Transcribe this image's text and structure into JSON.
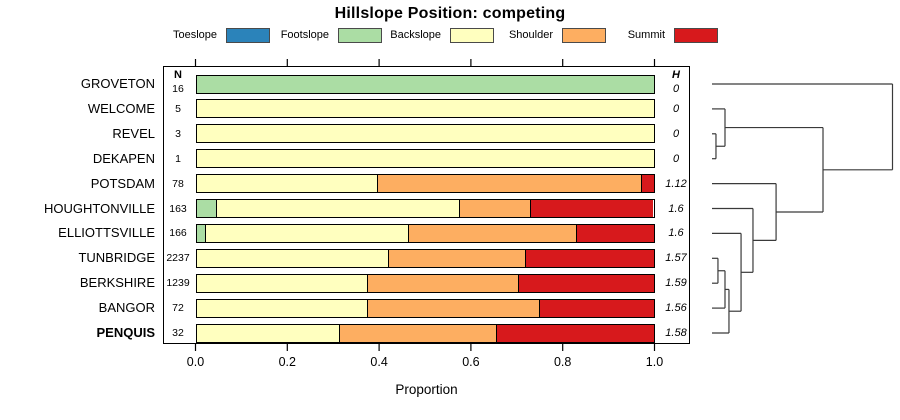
{
  "title": "Hillslope Position: competing",
  "legend": {
    "items": [
      {
        "label": "Toeslope",
        "color": "#2B83BA"
      },
      {
        "label": "Footslope",
        "color": "#ABDDA4"
      },
      {
        "label": "Backslope",
        "color": "#FFFFBF"
      },
      {
        "label": "Shoulder",
        "color": "#FDAE61"
      },
      {
        "label": "Summit",
        "color": "#D7191C"
      }
    ]
  },
  "columns": {
    "n_header": "N",
    "h_header": "H"
  },
  "axis": {
    "label": "Proportion",
    "ticks": [
      "0.0",
      "0.2",
      "0.4",
      "0.6",
      "0.8",
      "1.0"
    ],
    "tick_values": [
      0,
      0.2,
      0.4,
      0.6,
      0.8,
      1.0
    ]
  },
  "chart_data": {
    "type": "bar",
    "variant": "horizontal-stacked-proportion",
    "title": "Hillslope Position: competing",
    "xlabel": "Proportion",
    "xlim": [
      0,
      1
    ],
    "stack_classes": [
      "Toeslope",
      "Footslope",
      "Backslope",
      "Shoulder",
      "Summit"
    ],
    "rows": [
      {
        "name": "GROVETON",
        "n": "16",
        "h": "0",
        "bold": false,
        "segments": [
          {
            "class": "Footslope",
            "value": 1.0
          }
        ]
      },
      {
        "name": "WELCOME",
        "n": "5",
        "h": "0",
        "bold": false,
        "segments": [
          {
            "class": "Backslope",
            "value": 1.0
          }
        ]
      },
      {
        "name": "REVEL",
        "n": "3",
        "h": "0",
        "bold": false,
        "segments": [
          {
            "class": "Backslope",
            "value": 1.0
          }
        ]
      },
      {
        "name": "DEKAPEN",
        "n": "1",
        "h": "0",
        "bold": false,
        "segments": [
          {
            "class": "Backslope",
            "value": 1.0
          }
        ]
      },
      {
        "name": "POTSDAM",
        "n": "78",
        "h": "1.12",
        "bold": false,
        "segments": [
          {
            "class": "Backslope",
            "value": 0.397
          },
          {
            "class": "Shoulder",
            "value": 0.577
          },
          {
            "class": "Summit",
            "value": 0.026
          }
        ]
      },
      {
        "name": "HOUGHTONVILLE",
        "n": "163",
        "h": "1.6",
        "bold": false,
        "segments": [
          {
            "class": "Footslope",
            "value": 0.043
          },
          {
            "class": "Backslope",
            "value": 0.534
          },
          {
            "class": "Shoulder",
            "value": 0.153
          },
          {
            "class": "Summit",
            "value": 0.27
          }
        ]
      },
      {
        "name": "ELLIOTTSVILLE",
        "n": "166",
        "h": "1.6",
        "bold": false,
        "segments": [
          {
            "class": "Footslope",
            "value": 0.018
          },
          {
            "class": "Backslope",
            "value": 0.446
          },
          {
            "class": "Shoulder",
            "value": 0.367
          },
          {
            "class": "Summit",
            "value": 0.169
          }
        ]
      },
      {
        "name": "TUNBRIDGE",
        "n": "2237",
        "h": "1.57",
        "bold": false,
        "segments": [
          {
            "class": "Backslope",
            "value": 0.42
          },
          {
            "class": "Shoulder",
            "value": 0.3
          },
          {
            "class": "Summit",
            "value": 0.28
          }
        ]
      },
      {
        "name": "BERKSHIRE",
        "n": "1239",
        "h": "1.59",
        "bold": false,
        "segments": [
          {
            "class": "Backslope",
            "value": 0.375
          },
          {
            "class": "Shoulder",
            "value": 0.33
          },
          {
            "class": "Summit",
            "value": 0.295
          }
        ]
      },
      {
        "name": "BANGOR",
        "n": "72",
        "h": "1.56",
        "bold": false,
        "segments": [
          {
            "class": "Backslope",
            "value": 0.375
          },
          {
            "class": "Shoulder",
            "value": 0.375
          },
          {
            "class": "Summit",
            "value": 0.25
          }
        ]
      },
      {
        "name": "PENQUIS",
        "n": "32",
        "h": "1.58",
        "bold": true,
        "segments": [
          {
            "class": "Backslope",
            "value": 0.3125
          },
          {
            "class": "Shoulder",
            "value": 0.34375
          },
          {
            "class": "Summit",
            "value": 0.34375
          }
        ]
      }
    ],
    "dendrogram": {
      "merges": [
        {
          "id": "M1",
          "a": "L2",
          "b": "L3",
          "height": 0.022
        },
        {
          "id": "M2",
          "a": "L1",
          "b": "M1",
          "height": 0.072
        },
        {
          "id": "M3",
          "a": "L7",
          "b": "L8",
          "height": 0.033
        },
        {
          "id": "M4",
          "a": "M3",
          "b": "L9",
          "height": 0.072
        },
        {
          "id": "M5",
          "a": "M4",
          "b": "L10",
          "height": 0.094
        },
        {
          "id": "M6",
          "a": "L6",
          "b": "M5",
          "height": 0.161
        },
        {
          "id": "M7",
          "a": "L5",
          "b": "M6",
          "height": 0.227
        },
        {
          "id": "M8",
          "a": "L4",
          "b": "M7",
          "height": 0.355
        },
        {
          "id": "M9",
          "a": "M2",
          "b": "M8",
          "height": 0.615
        },
        {
          "id": "M10",
          "a": "L0",
          "b": "M9",
          "height": 1.0
        }
      ]
    }
  }
}
